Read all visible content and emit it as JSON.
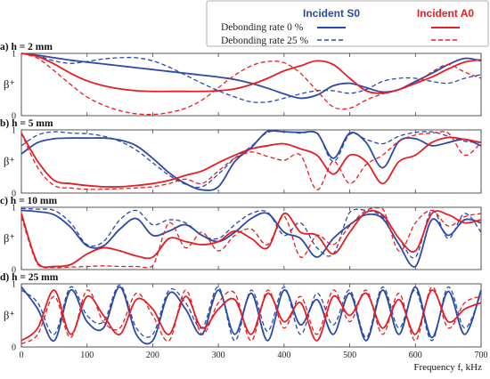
{
  "legend": {
    "incident_s0": "Incident S0",
    "incident_a0": "Incident A0",
    "rate_0": "Debonding rate 0 %",
    "rate_25": "Debonding rate 25 %"
  },
  "colors": {
    "s0": "#2b4aa8",
    "a0": "#e41e24"
  },
  "xaxis": {
    "label": "Frequency f, kHz",
    "ticks": [
      0,
      100,
      200,
      300,
      400,
      500,
      600,
      700
    ],
    "range": [
      0,
      700
    ]
  },
  "y_label": "β⁺",
  "chart_data": [
    {
      "type": "line",
      "panel_label": "a) h = 2 mm",
      "ylim": [
        0,
        1
      ],
      "yticks": [
        0,
        1
      ],
      "x": [
        0,
        25,
        50,
        75,
        100,
        125,
        150,
        175,
        200,
        225,
        250,
        275,
        300,
        325,
        350,
        375,
        400,
        425,
        450,
        475,
        500,
        525,
        550,
        575,
        600,
        625,
        650,
        675,
        700
      ],
      "series": [
        {
          "name": "Incident S0, Debonding rate 0 %",
          "values": [
            1.0,
            0.97,
            0.93,
            0.89,
            0.86,
            0.83,
            0.8,
            0.77,
            0.74,
            0.71,
            0.68,
            0.65,
            0.62,
            0.58,
            0.52,
            0.44,
            0.35,
            0.28,
            0.33,
            0.48,
            0.52,
            0.45,
            0.38,
            0.42,
            0.55,
            0.68,
            0.82,
            0.92,
            0.88
          ]
        },
        {
          "name": "Incident S0, Debonding rate 25 %",
          "values": [
            1.0,
            0.96,
            0.88,
            0.84,
            0.87,
            0.91,
            0.93,
            0.93,
            0.88,
            0.78,
            0.65,
            0.52,
            0.4,
            0.3,
            0.22,
            0.22,
            0.28,
            0.35,
            0.4,
            0.4,
            0.36,
            0.42,
            0.55,
            0.6,
            0.6,
            0.55,
            0.52,
            0.6,
            0.66
          ]
        },
        {
          "name": "Incident A0, Debonding rate 0 %",
          "values": [
            1.0,
            0.95,
            0.83,
            0.68,
            0.56,
            0.48,
            0.43,
            0.4,
            0.39,
            0.39,
            0.39,
            0.39,
            0.4,
            0.43,
            0.5,
            0.6,
            0.72,
            0.8,
            0.88,
            0.82,
            0.6,
            0.4,
            0.36,
            0.42,
            0.52,
            0.62,
            0.75,
            0.86,
            0.9
          ]
        },
        {
          "name": "Incident A0, Debonding rate 25 %",
          "values": [
            1.0,
            0.92,
            0.72,
            0.5,
            0.3,
            0.17,
            0.08,
            0.03,
            0.02,
            0.05,
            0.12,
            0.25,
            0.45,
            0.65,
            0.8,
            0.87,
            0.85,
            0.68,
            0.4,
            0.14,
            0.12,
            0.25,
            0.35,
            0.42,
            0.52,
            0.7,
            0.82,
            0.7,
            0.6
          ]
        }
      ]
    },
    {
      "type": "line",
      "panel_label": "b) h = 5 mm",
      "ylim": [
        0,
        1
      ],
      "yticks": [
        0,
        1
      ],
      "x": [
        0,
        25,
        50,
        75,
        100,
        125,
        150,
        175,
        200,
        225,
        250,
        275,
        300,
        325,
        350,
        375,
        400,
        425,
        450,
        475,
        500,
        525,
        550,
        575,
        600,
        625,
        650,
        675,
        700
      ],
      "series": [
        {
          "name": "Incident S0, Debonding rate 0 %",
          "values": [
            0.62,
            0.8,
            0.86,
            0.87,
            0.87,
            0.87,
            0.84,
            0.75,
            0.55,
            0.32,
            0.15,
            0.05,
            0.1,
            0.5,
            0.72,
            0.98,
            0.97,
            0.96,
            0.95,
            0.55,
            0.95,
            0.8,
            0.4,
            0.82,
            0.86,
            0.75,
            0.8,
            0.85,
            0.75
          ]
        },
        {
          "name": "Incident S0, Debonding rate 25 %",
          "values": [
            0.75,
            0.92,
            0.97,
            0.95,
            0.94,
            0.9,
            0.82,
            0.68,
            0.48,
            0.28,
            0.14,
            0.1,
            0.3,
            0.55,
            0.74,
            0.96,
            0.97,
            0.95,
            0.96,
            0.5,
            0.93,
            0.85,
            0.78,
            0.9,
            0.96,
            0.97,
            0.9,
            0.82,
            0.8
          ]
        },
        {
          "name": "Incident A0, Debonding rate 0 %",
          "values": [
            0.95,
            0.5,
            0.2,
            0.15,
            0.12,
            0.1,
            0.1,
            0.12,
            0.15,
            0.2,
            0.28,
            0.35,
            0.48,
            0.6,
            0.7,
            0.75,
            0.78,
            0.7,
            0.6,
            0.3,
            0.6,
            0.5,
            0.15,
            0.5,
            0.6,
            0.8,
            0.88,
            0.85,
            0.8
          ]
        },
        {
          "name": "Incident A0, Debonding rate 25 %",
          "values": [
            0.95,
            0.4,
            0.12,
            0.08,
            0.06,
            0.06,
            0.07,
            0.08,
            0.1,
            0.15,
            0.22,
            0.15,
            0.35,
            0.55,
            0.65,
            0.58,
            0.52,
            0.6,
            0.05,
            0.5,
            0.15,
            0.45,
            0.6,
            0.82,
            0.92,
            0.95,
            0.95,
            0.6,
            0.8
          ]
        }
      ]
    },
    {
      "type": "line",
      "panel_label": "c) h = 10 mm",
      "ylim": [
        0,
        1
      ],
      "yticks": [
        0,
        1
      ],
      "x": [
        0,
        25,
        50,
        75,
        100,
        125,
        150,
        175,
        200,
        225,
        250,
        275,
        300,
        325,
        350,
        375,
        400,
        425,
        450,
        475,
        500,
        525,
        550,
        575,
        600,
        625,
        650,
        675,
        700
      ],
      "series": [
        {
          "name": "Incident S0, Debonding rate 0 %",
          "values": [
            0.95,
            0.93,
            0.88,
            0.68,
            0.38,
            0.38,
            0.65,
            0.82,
            0.55,
            0.62,
            0.72,
            0.55,
            0.45,
            0.6,
            0.82,
            0.9,
            0.6,
            0.5,
            0.2,
            0.5,
            0.72,
            0.88,
            0.82,
            0.4,
            0.05,
            0.8,
            0.55,
            0.8,
            0.75
          ]
        },
        {
          "name": "Incident S0, Debonding rate 25 %",
          "values": [
            0.98,
            0.97,
            0.95,
            0.75,
            0.4,
            0.45,
            0.8,
            0.95,
            0.72,
            0.8,
            0.75,
            0.55,
            0.5,
            0.72,
            0.9,
            0.92,
            0.55,
            0.75,
            0.35,
            0.25,
            0.92,
            0.95,
            0.85,
            0.5,
            0.2,
            0.95,
            0.5,
            0.9,
            0.6
          ]
        },
        {
          "name": "Incident A0, Debonding rate 0 %",
          "values": [
            0.9,
            0.1,
            0.05,
            0.08,
            0.25,
            0.35,
            0.3,
            0.22,
            0.2,
            0.5,
            0.45,
            0.4,
            0.45,
            0.62,
            0.5,
            0.35,
            0.9,
            0.6,
            0.55,
            0.25,
            0.6,
            0.92,
            0.88,
            0.5,
            0.3,
            0.9,
            0.88,
            0.75,
            0.8
          ]
        },
        {
          "name": "Incident A0, Debonding rate 25 %",
          "values": [
            0.85,
            0.08,
            0.03,
            0.04,
            0.05,
            0.06,
            0.05,
            0.05,
            0.06,
            0.75,
            0.35,
            0.6,
            0.3,
            0.55,
            0.65,
            0.4,
            0.85,
            0.2,
            0.55,
            0.4,
            0.7,
            0.95,
            0.98,
            0.3,
            0.75,
            0.95,
            0.7,
            0.85,
            0.9
          ]
        }
      ]
    },
    {
      "type": "line",
      "panel_label": "d) h = 25 mm",
      "ylim": [
        0,
        1
      ],
      "yticks": [
        0,
        1
      ],
      "x": [
        0,
        25,
        50,
        75,
        100,
        125,
        150,
        175,
        200,
        225,
        250,
        275,
        300,
        325,
        350,
        375,
        400,
        425,
        450,
        475,
        500,
        525,
        550,
        575,
        600,
        625,
        650,
        675,
        700
      ],
      "series": [
        {
          "name": "Incident S0, Debonding rate 0 %",
          "values": [
            0.95,
            0.6,
            0.1,
            0.9,
            0.4,
            0.3,
            0.95,
            0.2,
            0.1,
            0.85,
            0.6,
            0.2,
            0.9,
            0.2,
            0.85,
            0.1,
            0.9,
            0.35,
            0.75,
            0.2,
            0.85,
            0.1,
            0.9,
            0.2,
            0.95,
            0.15,
            0.88,
            0.2,
            0.9
          ]
        },
        {
          "name": "Incident S0, Debonding rate 25 %",
          "values": [
            0.9,
            0.7,
            0.2,
            0.95,
            0.5,
            0.4,
            0.98,
            0.3,
            0.2,
            0.9,
            0.7,
            0.3,
            0.95,
            0.1,
            0.9,
            0.25,
            0.95,
            0.2,
            0.85,
            0.35,
            0.9,
            0.15,
            0.95,
            0.3,
            0.9,
            0.1,
            0.95,
            0.3,
            0.85
          ]
        },
        {
          "name": "Incident A0, Debonding rate 0 %",
          "values": [
            0.1,
            0.3,
            0.9,
            0.2,
            0.8,
            0.5,
            0.2,
            0.75,
            0.6,
            0.2,
            0.8,
            0.3,
            0.6,
            0.75,
            0.2,
            0.85,
            0.4,
            0.7,
            0.1,
            0.8,
            0.5,
            0.85,
            0.3,
            0.75,
            0.2,
            0.9,
            0.4,
            0.6,
            0.7
          ]
        },
        {
          "name": "Incident A0, Debonding rate 25 %",
          "values": [
            0.05,
            0.2,
            0.8,
            0.15,
            0.9,
            0.4,
            0.3,
            0.85,
            0.5,
            0.1,
            0.9,
            0.2,
            0.7,
            0.85,
            0.1,
            0.9,
            0.3,
            0.8,
            0.2,
            0.9,
            0.4,
            0.9,
            0.2,
            0.85,
            0.1,
            0.95,
            0.3,
            0.7,
            0.8
          ]
        }
      ]
    }
  ]
}
